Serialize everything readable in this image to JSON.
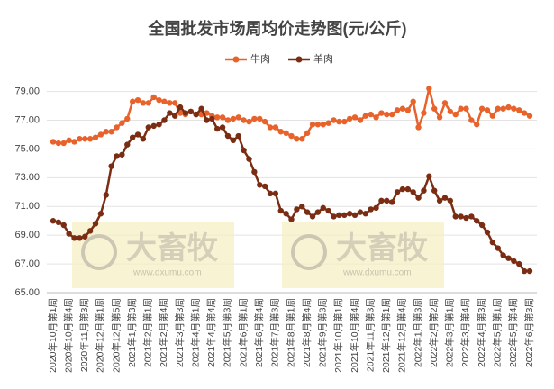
{
  "chart_data": {
    "type": "line",
    "title": "全国批发市场周均价走势图(元/公斤)",
    "legend": "top",
    "grid": true,
    "watermark": {
      "brand": "大畜牧",
      "url": "www.dxumu.com"
    },
    "categories": [
      "2020年10月第1周",
      null,
      null,
      "2020年10月第4周",
      null,
      null,
      "2020年11月第3周",
      null,
      null,
      "2020年12月第1周",
      null,
      null,
      "2020年12月第5周",
      null,
      null,
      "2021年1月第3周",
      null,
      null,
      "2021年2月第1周",
      null,
      null,
      "2021年2月第4周",
      null,
      null,
      "2021年3月第3周",
      null,
      null,
      "2021年4月第1周",
      null,
      null,
      "2021年4月第4周",
      null,
      null,
      "2021年5月第3周",
      null,
      null,
      "2021年6月第1周",
      null,
      null,
      "2021年6月第4周",
      null,
      null,
      "2021年7月第3周",
      null,
      null,
      "2021年8月第1周",
      null,
      null,
      "2021年8月第4周",
      null,
      null,
      "2021年9月第3周",
      null,
      null,
      "2021年10月第1周",
      null,
      null,
      "2021年10月第4周",
      null,
      null,
      "2021年11月第3周",
      null,
      null,
      "2021年12月第1周",
      null,
      null,
      "2021年12月第4周",
      null,
      null,
      "2022年1月第3周",
      null,
      null,
      "2022年2月第2周",
      null,
      null,
      "2022年3月第1周",
      null,
      null,
      "2022年3月第4周",
      null,
      null,
      "2022年4月第3周",
      null,
      null,
      "2022年5月第1周",
      null,
      null,
      "2022年5月第4周",
      null,
      null,
      "2022年6月第3周"
    ],
    "series": [
      {
        "name": "牛肉",
        "color": "#e8632b",
        "values": [
          75.5,
          75.4,
          75.4,
          75.6,
          75.5,
          75.7,
          75.7,
          75.7,
          75.8,
          76.0,
          76.2,
          76.2,
          76.5,
          76.8,
          77.1,
          78.3,
          78.4,
          78.2,
          78.2,
          78.6,
          78.4,
          78.3,
          78.2,
          78.2,
          77.5,
          77.4,
          77.6,
          77.4,
          77.4,
          77.5,
          77.3,
          77.2,
          77.2,
          77.0,
          77.1,
          77.2,
          77.0,
          76.9,
          77.1,
          77.1,
          76.9,
          76.5,
          76.5,
          76.2,
          76.1,
          75.9,
          75.7,
          75.7,
          76.1,
          76.7,
          76.7,
          76.7,
          76.8,
          77.0,
          76.9,
          76.9,
          77.1,
          77.2,
          77.0,
          77.3,
          77.4,
          77.2,
          77.5,
          77.4,
          77.4,
          77.7,
          77.8,
          77.7,
          78.3,
          76.5,
          77.5,
          79.2,
          77.8,
          77.2,
          78.2,
          77.6,
          77.4,
          77.8,
          77.8,
          77.0,
          76.7,
          77.8,
          77.7,
          77.3,
          77.8,
          77.8,
          77.9,
          77.8,
          77.7,
          77.5,
          77.3
        ]
      },
      {
        "name": "羊肉",
        "color": "#7a2d13",
        "values": [
          70.0,
          69.9,
          69.7,
          69.1,
          68.8,
          68.8,
          68.9,
          69.3,
          69.8,
          70.5,
          71.8,
          73.8,
          74.5,
          74.6,
          75.3,
          75.8,
          76.0,
          75.7,
          76.5,
          76.6,
          76.7,
          77.0,
          77.5,
          77.3,
          77.9,
          77.5,
          77.6,
          77.4,
          77.8,
          77.0,
          77.1,
          76.4,
          76.5,
          75.9,
          75.6,
          75.9,
          74.9,
          74.3,
          73.4,
          72.5,
          72.4,
          71.9,
          71.9,
          70.7,
          70.5,
          70.1,
          70.8,
          71.0,
          70.6,
          70.3,
          70.6,
          70.9,
          70.7,
          70.3,
          70.4,
          70.4,
          70.5,
          70.4,
          70.6,
          70.5,
          70.8,
          70.9,
          71.4,
          71.4,
          71.3,
          72.0,
          72.2,
          72.2,
          72.0,
          71.6,
          72.1,
          73.1,
          72.1,
          71.4,
          71.6,
          71.4,
          70.3,
          70.3,
          70.2,
          70.3,
          70.0,
          69.7,
          69.2,
          68.5,
          68.1,
          67.6,
          67.4,
          67.2,
          67.0,
          66.5,
          66.5
        ]
      }
    ],
    "ylim": [
      65,
      79.6
    ],
    "yticks": [
      {
        "value": 65,
        "label": "65.00"
      },
      {
        "value": 67,
        "label": "67.00"
      },
      {
        "value": 69,
        "label": "69.00"
      },
      {
        "value": 71,
        "label": "71.00"
      },
      {
        "value": 73,
        "label": "73.00"
      },
      {
        "value": 75,
        "label": "75.00"
      },
      {
        "value": 77,
        "label": "77.00"
      },
      {
        "value": 79,
        "label": "79.00"
      }
    ]
  }
}
